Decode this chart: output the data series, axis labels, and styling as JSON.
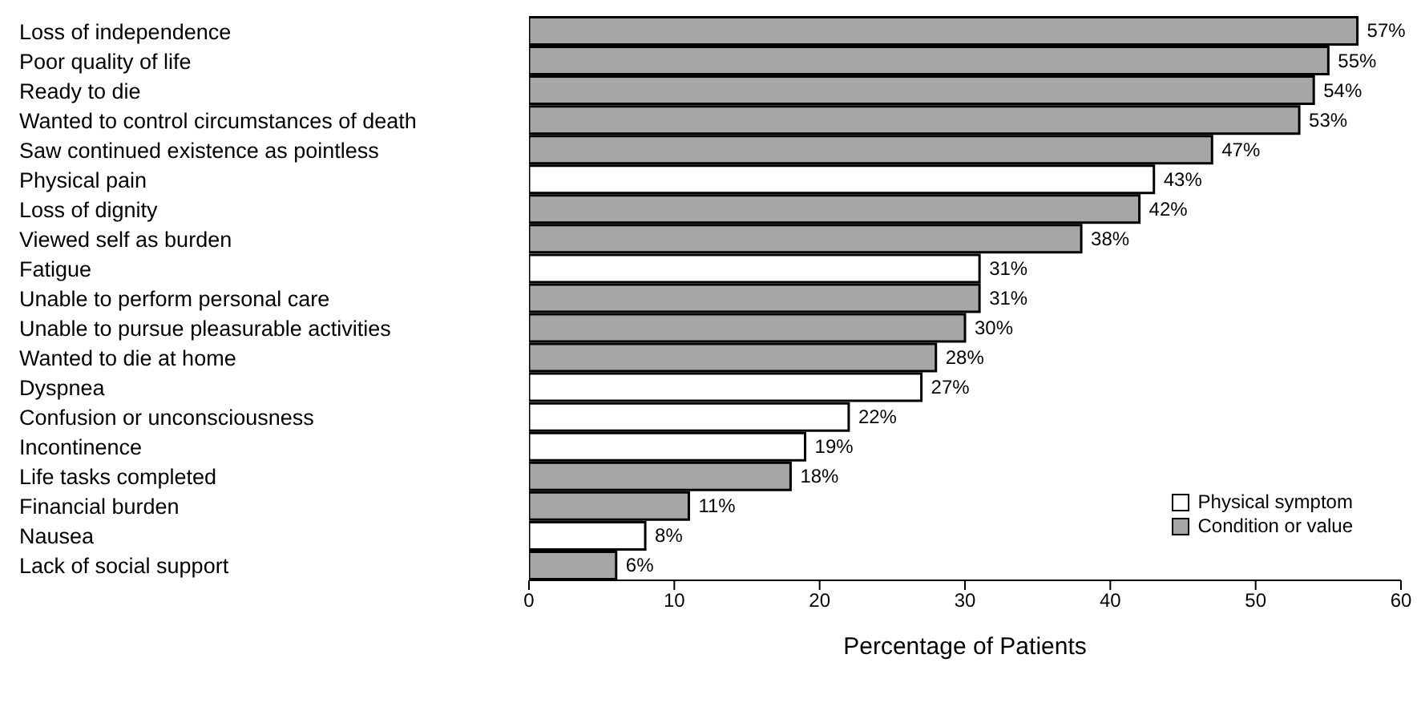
{
  "chart_data": {
    "type": "bar",
    "orientation": "horizontal",
    "stacked": true,
    "xlabel": "Percentage of Patients",
    "xlim": [
      0,
      60
    ],
    "xticks": [
      0,
      10,
      20,
      30,
      40,
      50,
      60
    ],
    "grid": false,
    "legend": "bottom right",
    "categories": [
      "Loss of independence",
      "Poor quality of life",
      "Ready to die",
      "Wanted to control circumstances of death",
      "Saw continued existence as pointless",
      "Physical pain",
      "Loss of dignity",
      "Viewed self as burden",
      "Fatigue",
      "Unable to perform personal care",
      "Unable to pursue pleasurable activities",
      "Wanted to die at home",
      "Dyspnea",
      "Confusion or unconsciousness",
      "Incontinence",
      "Life tasks completed",
      "Financial burden",
      "Nausea",
      "Lack of social support"
    ],
    "series": [
      {
        "name": "Physical symptom",
        "color": "#ffffff",
        "values": [
          null,
          null,
          null,
          null,
          null,
          43,
          null,
          null,
          31,
          null,
          null,
          null,
          27,
          22,
          19,
          null,
          null,
          8,
          null
        ],
        "value_labels": [
          null,
          null,
          null,
          null,
          null,
          "43%",
          null,
          null,
          "31%",
          null,
          null,
          null,
          "27%",
          "22%",
          "19%",
          null,
          null,
          "8%",
          null
        ]
      },
      {
        "name": "Condition or value",
        "color": "#a6a6a6",
        "values": [
          57,
          55,
          54,
          53,
          47,
          null,
          42,
          38,
          null,
          31,
          30,
          28,
          null,
          null,
          null,
          18,
          11,
          null,
          6
        ],
        "value_labels": [
          "57%",
          "55%",
          "54%",
          "53%",
          "47%",
          null,
          "42%",
          "38%",
          null,
          "31%",
          "30%",
          "28%",
          null,
          null,
          null,
          "18%",
          "11%",
          null,
          "6%"
        ]
      }
    ]
  }
}
